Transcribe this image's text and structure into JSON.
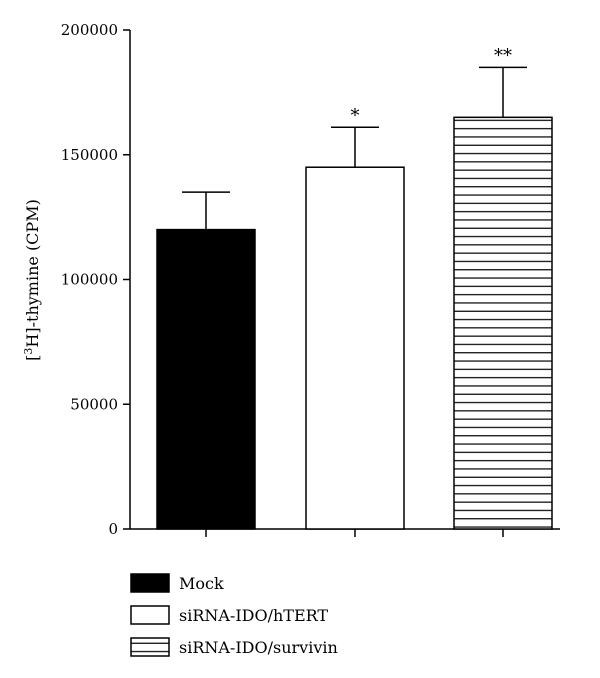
{
  "chart_data": {
    "type": "bar",
    "categories": [
      "Mock",
      "siRNA-IDO/hTERT",
      "siRNA-IDO/survivin"
    ],
    "values": [
      120000,
      145000,
      165000
    ],
    "errors": [
      15000,
      16000,
      20000
    ],
    "significance": [
      "",
      "*",
      "**"
    ],
    "fills": [
      "solid-black",
      "white",
      "horizontal-stripes"
    ],
    "ylabel": {
      "prefix": "[",
      "sup": "3",
      "suffix": "H]-thymine (CPM)"
    },
    "ylim": [
      0,
      200000
    ],
    "yticks": [
      "0",
      "50000",
      "100000",
      "150000",
      "200000"
    ],
    "legend": {
      "placement": "bottom-left",
      "entries": [
        "Mock",
        "siRNA-IDO/hTERT",
        "siRNA-IDO/survivin"
      ]
    },
    "grid": false,
    "colors": {
      "ink": "#000000",
      "background": "#ffffff"
    }
  }
}
